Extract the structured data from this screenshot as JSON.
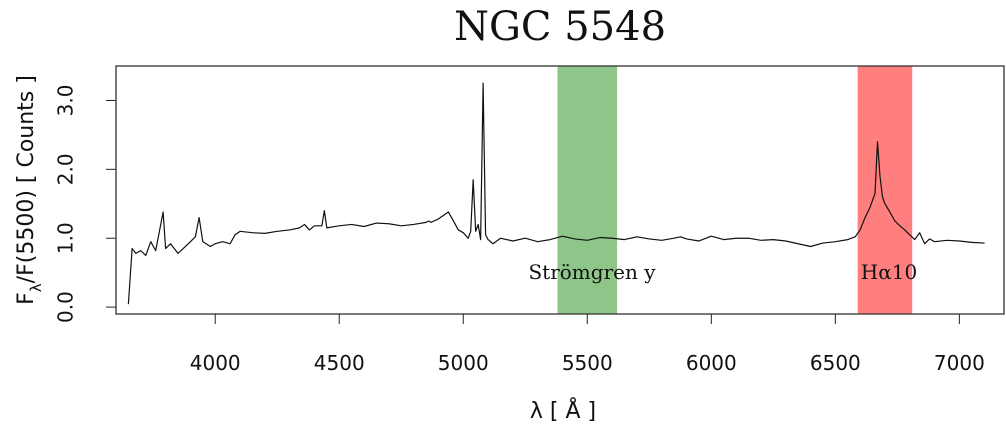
{
  "chart_data": {
    "type": "line",
    "title": "NGC 5548",
    "xlabel": "λ [ Å ]",
    "ylabel": "Fλ/F(5500) [ Counts ]",
    "ylabel_parts": {
      "main": "F",
      "subscript": "λ",
      "rest": "/F(5500) [ Counts ]"
    },
    "xlim": [
      3600,
      7180
    ],
    "ylim": [
      -0.1,
      3.5
    ],
    "x_ticks": [
      4000,
      4500,
      5000,
      5500,
      6000,
      6500,
      7000
    ],
    "x_tick_labels": [
      "4000",
      "4500",
      "5000",
      "5500",
      "6000",
      "6500",
      "7000"
    ],
    "y_ticks": [
      0.0,
      1.0,
      2.0,
      3.0
    ],
    "y_tick_labels": [
      "0.0",
      "1.0",
      "2.0",
      "3.0"
    ],
    "grid": false,
    "line_color": "#111111",
    "bands": [
      {
        "label": "Strömgren y",
        "range": [
          5380,
          5620
        ],
        "color": "#8ec68a"
      },
      {
        "label": "Hα10",
        "range": [
          6590,
          6810
        ],
        "color": "#ff7f7f"
      }
    ],
    "series": [
      {
        "x": [
          3650,
          3665,
          3680,
          3700,
          3720,
          3740,
          3760,
          3790,
          3800,
          3820,
          3850,
          3880,
          3900,
          3920,
          3935,
          3950,
          3980,
          4000,
          4030,
          4060,
          4080,
          4100,
          4150,
          4200,
          4250,
          4300,
          4340,
          4360,
          4380,
          4400,
          4430,
          4440,
          4450,
          4500,
          4550,
          4600,
          4650,
          4700,
          4750,
          4800,
          4850,
          4861,
          4870,
          4900,
          4940,
          4959,
          4980,
          5000,
          5020,
          5030,
          5040,
          5050,
          5060,
          5070,
          5080,
          5090,
          5100,
          5120,
          5150,
          5200,
          5250,
          5300,
          5350,
          5400,
          5450,
          5500,
          5550,
          5600,
          5650,
          5700,
          5750,
          5800,
          5850,
          5876,
          5900,
          5950,
          6000,
          6050,
          6100,
          6150,
          6200,
          6250,
          6300,
          6350,
          6400,
          6450,
          6500,
          6550,
          6580,
          6600,
          6620,
          6640,
          6660,
          6670,
          6680,
          6690,
          6700,
          6720,
          6740,
          6760,
          6780,
          6800,
          6820,
          6840,
          6860,
          6880,
          6900,
          6950,
          7000,
          7050,
          7100
        ],
        "values": [
          0.05,
          0.85,
          0.78,
          0.82,
          0.75,
          0.95,
          0.82,
          1.38,
          0.85,
          0.92,
          0.78,
          0.88,
          0.95,
          1.02,
          1.3,
          0.95,
          0.88,
          0.92,
          0.95,
          0.92,
          1.05,
          1.1,
          1.08,
          1.07,
          1.1,
          1.12,
          1.15,
          1.2,
          1.12,
          1.18,
          1.18,
          1.4,
          1.15,
          1.18,
          1.2,
          1.17,
          1.22,
          1.21,
          1.18,
          1.2,
          1.23,
          1.25,
          1.23,
          1.28,
          1.38,
          1.26,
          1.12,
          1.08,
          1.0,
          1.1,
          1.85,
          1.1,
          1.2,
          0.98,
          3.25,
          1.05,
          0.98,
          0.92,
          1.0,
          0.96,
          1.0,
          0.95,
          0.98,
          1.03,
          0.99,
          0.97,
          1.01,
          1.0,
          0.98,
          1.02,
          0.99,
          0.97,
          1.0,
          1.02,
          0.99,
          0.96,
          1.03,
          0.98,
          1.0,
          1.0,
          0.97,
          0.98,
          0.96,
          0.92,
          0.88,
          0.93,
          0.95,
          0.98,
          1.02,
          1.12,
          1.3,
          1.45,
          1.65,
          2.4,
          1.9,
          1.6,
          1.5,
          1.38,
          1.25,
          1.18,
          1.12,
          1.05,
          0.98,
          1.08,
          0.92,
          0.99,
          0.95,
          0.97,
          0.96,
          0.94,
          0.93
        ]
      }
    ],
    "legend": "none"
  }
}
